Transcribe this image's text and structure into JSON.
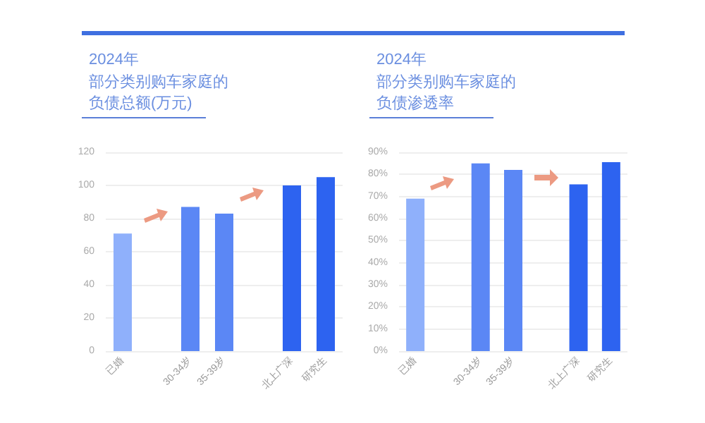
{
  "chart_data": [
    {
      "type": "bar",
      "title": "2024年",
      "subtitle": "部分类别购车家庭的负债总额(万元)",
      "categories": [
        "已婚",
        null,
        "30-34岁",
        "35-39岁",
        null,
        "北上广深",
        "研究生"
      ],
      "values": [
        71,
        null,
        87,
        83,
        null,
        100,
        105
      ],
      "colors": [
        "#8fb0fb",
        "#8fb0fb",
        "#5b87f5",
        "#5b87f5",
        "#2d63f0",
        "#2d63f0",
        "#2d63f0"
      ],
      "ylim": [
        0,
        120
      ],
      "yticks": [
        0,
        20,
        40,
        60,
        80,
        100,
        120
      ],
      "grid": "y"
    },
    {
      "type": "bar",
      "title": "2024年",
      "subtitle": "部分类别购车家庭的负债渗透率",
      "categories": [
        "已婚",
        null,
        "30-34岁",
        "35-39岁",
        null,
        "北上广深",
        "研究生"
      ],
      "values": [
        69,
        null,
        85,
        82,
        null,
        75.5,
        85.5
      ],
      "colors": [
        "#8fb0fb",
        "#8fb0fb",
        "#5b87f5",
        "#5b87f5",
        "#2d63f0",
        "#2d63f0",
        "#2d63f0"
      ],
      "ylim": [
        0,
        90
      ],
      "yticks": [
        {
          "value": 0,
          "label": "0%"
        },
        {
          "value": 10,
          "label": "10%"
        },
        {
          "value": 20,
          "label": "20%"
        },
        {
          "value": 30,
          "label": "30%"
        },
        {
          "value": 40,
          "label": "40%"
        },
        {
          "value": 50,
          "label": "50%"
        },
        {
          "value": 60,
          "label": "60%"
        },
        {
          "value": 70,
          "label": "70%"
        },
        {
          "value": 80,
          "label": "80%"
        },
        {
          "value": 90,
          "label": "90%"
        }
      ],
      "grid": "y"
    }
  ]
}
